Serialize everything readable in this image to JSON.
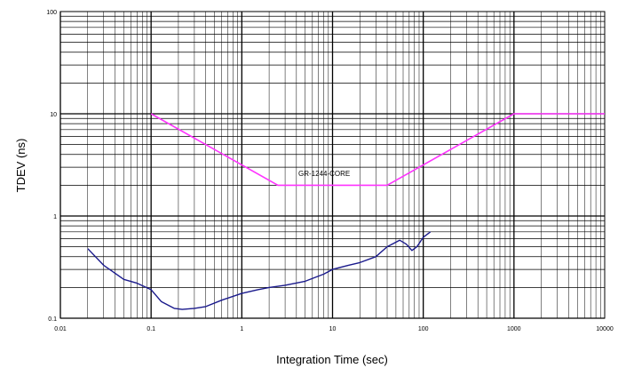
{
  "chart_data": {
    "type": "line",
    "xlabel": "Integration Time (sec)",
    "ylabel": "TDEV (ns)",
    "xscale": "log",
    "yscale": "log",
    "xlim": [
      0.01,
      10000
    ],
    "ylim": [
      0.1,
      100
    ],
    "grid": true,
    "x_tick_labels": [
      "0.01",
      "0.1",
      "1",
      "10",
      "100",
      "1000",
      "10000"
    ],
    "y_tick_labels": [
      "0.1",
      "1",
      "10",
      "100"
    ],
    "annotation": "GR-1244-CORE",
    "colors": {
      "mask": "#ff33ff",
      "measured": "#1a1a8c",
      "grid": "#000000"
    },
    "series": [
      {
        "label": "GR-1244-CORE",
        "x": [
          0.1,
          2.5,
          40,
          1000,
          10000
        ],
        "y": [
          10,
          2,
          2,
          10,
          10
        ]
      },
      {
        "x": [
          0.02,
          0.03,
          0.05,
          0.07,
          0.1,
          0.13,
          0.18,
          0.22,
          0.3,
          0.4,
          0.6,
          1,
          1.5,
          2,
          3,
          5,
          8,
          10,
          15,
          20,
          30,
          40,
          55,
          65,
          75,
          85,
          100,
          120
        ],
        "y": [
          0.48,
          0.33,
          0.24,
          0.22,
          0.19,
          0.145,
          0.125,
          0.122,
          0.125,
          0.13,
          0.15,
          0.175,
          0.19,
          0.2,
          0.21,
          0.23,
          0.27,
          0.3,
          0.33,
          0.35,
          0.4,
          0.5,
          0.58,
          0.53,
          0.46,
          0.5,
          0.62,
          0.7
        ]
      }
    ]
  }
}
